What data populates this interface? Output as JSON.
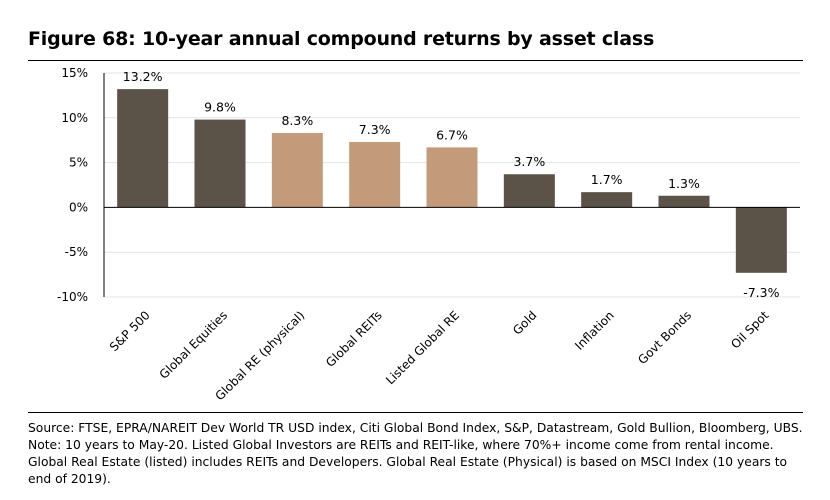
{
  "figure": {
    "title": "Figure 68: 10-year annual compound returns by asset class",
    "source": "Source:  FTSE, EPRA/NAREIT Dev World TR USD index, Citi Global Bond Index, S&P, Datastream, Gold Bullion, Bloomberg, UBS. Note: 10 years to May-20. Listed Global Investors are REITs and REIT-like, where 70%+ income come from rental income. Global Real Estate (listed) includes REITs and Developers. Global Real Estate (Physical) is based on MSCI Index (10 years to end of 2019)."
  },
  "colors": {
    "dark": "#5b5248",
    "tan": "#c39b7a",
    "gridline": "#e3e3e3",
    "axis": "#000000"
  },
  "chart_data": {
    "type": "bar",
    "title": "Figure 68: 10-year annual compound returns by asset class",
    "xlabel": "",
    "ylabel": "",
    "ylim": [
      -10,
      15
    ],
    "yticks": [
      15,
      10,
      5,
      0,
      -5,
      -10
    ],
    "ytick_labels": [
      "15%",
      "10%",
      "5%",
      "0%",
      "-5%",
      "-10%"
    ],
    "grid": true,
    "legend": "none",
    "categories": [
      "S&P 500",
      "Global Equities",
      "Global RE (physical)",
      "Global REITs",
      "Listed Global RE",
      "Gold",
      "Inflation",
      "Govt Bonds",
      "Oil Spot"
    ],
    "values": [
      13.2,
      9.8,
      8.3,
      7.3,
      6.7,
      3.7,
      1.7,
      1.3,
      -7.3
    ],
    "value_labels": [
      "13.2%",
      "9.8%",
      "8.3%",
      "7.3%",
      "6.7%",
      "3.7%",
      "1.7%",
      "1.3%",
      "-7.3%"
    ],
    "bar_colors": [
      "dark",
      "dark",
      "tan",
      "tan",
      "tan",
      "dark",
      "dark",
      "dark",
      "dark"
    ]
  }
}
